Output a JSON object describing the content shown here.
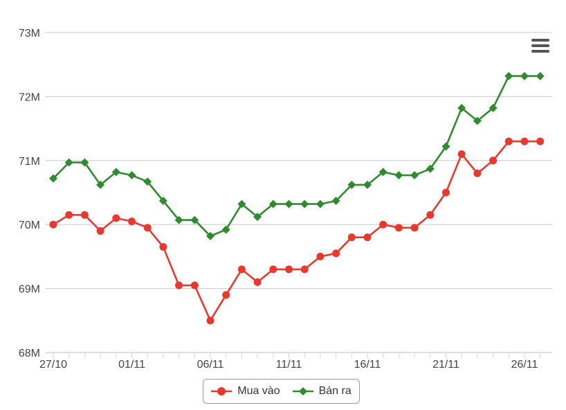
{
  "colors": {
    "buy": "#e8392f",
    "sell": "#2e8b2e",
    "grid": "#c8c8c8",
    "axis": "#ccd6eb",
    "label": "#444444",
    "menu": "#555555"
  },
  "menu": {
    "icon": "hamburger-menu-icon"
  },
  "chart_data": {
    "type": "line",
    "title": "",
    "xlabel": "",
    "ylabel": "",
    "ylim": [
      68,
      73
    ],
    "y_unit_suffix": "M",
    "y_ticks": [
      "68M",
      "69M",
      "70M",
      "71M",
      "72M",
      "73M"
    ],
    "x_tick_labels": [
      "27/10",
      "01/11",
      "06/11",
      "11/11",
      "16/11",
      "21/11",
      "26/11"
    ],
    "grid": true,
    "legend_position": "bottom-center",
    "series": [
      {
        "name": "Mua vào",
        "marker": "circle",
        "values": [
          70.0,
          70.15,
          70.15,
          69.9,
          70.1,
          70.05,
          69.95,
          69.65,
          69.05,
          69.05,
          68.5,
          68.9,
          69.3,
          69.1,
          69.3,
          69.3,
          69.3,
          69.5,
          69.55,
          69.8,
          69.8,
          70.0,
          69.95,
          69.95,
          70.15,
          70.5,
          71.1,
          70.8,
          71.0,
          71.3,
          71.3,
          71.3
        ]
      },
      {
        "name": "Bán ra",
        "marker": "diamond",
        "values": [
          70.72,
          70.97,
          70.97,
          70.62,
          70.82,
          70.77,
          70.67,
          70.37,
          70.07,
          70.07,
          69.82,
          69.92,
          70.32,
          70.12,
          70.32,
          70.32,
          70.32,
          70.32,
          70.37,
          70.62,
          70.62,
          70.82,
          70.77,
          70.77,
          70.87,
          71.22,
          71.82,
          71.62,
          71.82,
          72.32,
          72.32,
          72.32
        ]
      }
    ]
  }
}
